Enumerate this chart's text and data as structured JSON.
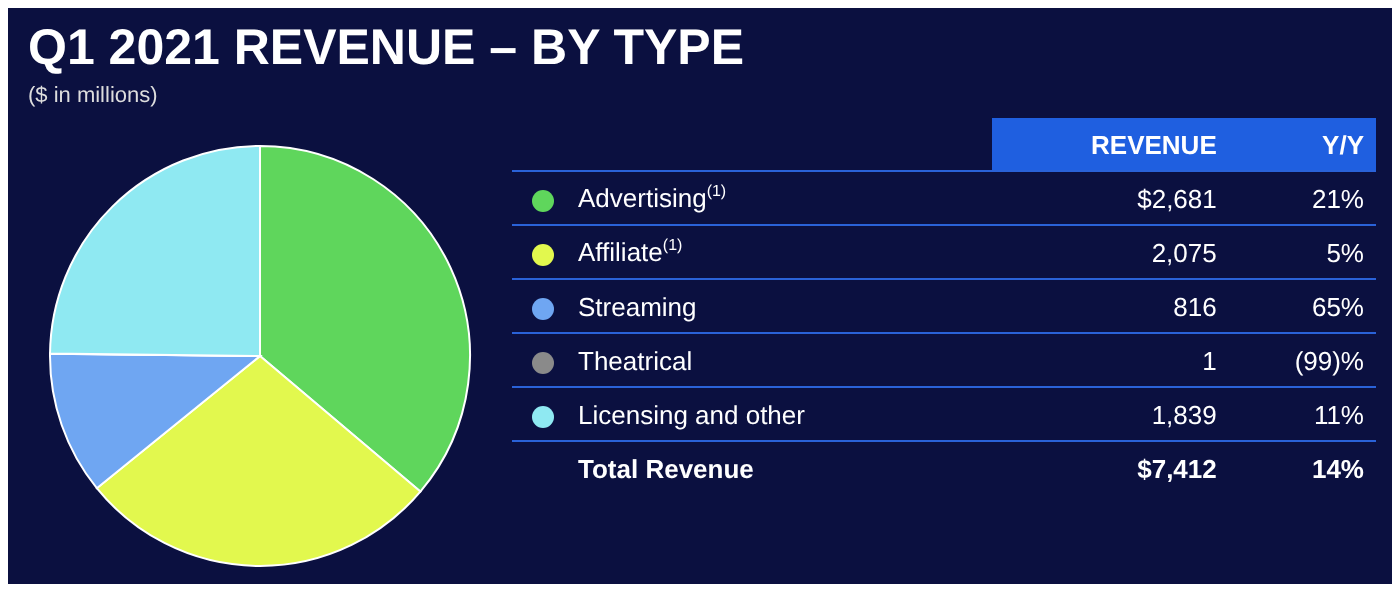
{
  "chart_data": {
    "type": "pie",
    "title": "Q1 2021 REVENUE – BY TYPE",
    "subtitle": "($ in millions)",
    "categories": [
      "Advertising$^{(1)}$",
      "Affiliate$^{(1)}$",
      "Streaming",
      "Theatrical",
      "Licensing and other"
    ],
    "values": [
      2681,
      2075,
      816,
      1,
      1839
    ],
    "colors": [
      "#5fd65c",
      "#e2f84e",
      "#6fa6f2",
      "#8a8a8a",
      "#8fe9f2"
    ],
    "value_labels": [
      "$2,681",
      "2,075",
      "816",
      "1",
      "1,839"
    ],
    "legend": "right",
    "annotations": [
      "REVENUE",
      "Y/Y",
      "21%",
      "5%",
      "65%",
      "(99)%",
      "11%",
      "Total Revenue",
      "$7,412",
      "14%"
    ]
  }
}
